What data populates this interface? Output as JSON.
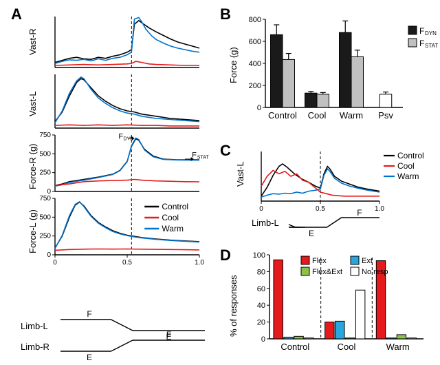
{
  "colors": {
    "control": "#000000",
    "cool": "#e41a1c",
    "warm": "#0072ce",
    "axis": "#000000",
    "fdyn_fill": "#1a1a1a",
    "fstat_fill": "#c0c0c0",
    "psv_fill": "#ffffff",
    "flex": "#e41a1c",
    "ext": "#2aa6de",
    "flexext": "#8bc34a",
    "noresp": "#ffffff",
    "bg": "#ffffff"
  },
  "panelA": {
    "label": "A",
    "x_ticks": [
      0,
      0.5,
      1.0
    ],
    "vdash_x": 0.53,
    "plots": [
      {
        "ylab": "Vast-R",
        "ylim": [
          0,
          1
        ],
        "control": [
          [
            0,
            0.1
          ],
          [
            0.05,
            0.14
          ],
          [
            0.1,
            0.18
          ],
          [
            0.15,
            0.2
          ],
          [
            0.2,
            0.17
          ],
          [
            0.25,
            0.16
          ],
          [
            0.3,
            0.2
          ],
          [
            0.35,
            0.18
          ],
          [
            0.4,
            0.22
          ],
          [
            0.45,
            0.25
          ],
          [
            0.5,
            0.3
          ],
          [
            0.53,
            0.35
          ],
          [
            0.55,
            0.85
          ],
          [
            0.58,
            0.92
          ],
          [
            0.6,
            0.88
          ],
          [
            0.65,
            0.78
          ],
          [
            0.7,
            0.7
          ],
          [
            0.75,
            0.63
          ],
          [
            0.8,
            0.56
          ],
          [
            0.85,
            0.5
          ],
          [
            0.9,
            0.46
          ],
          [
            0.95,
            0.42
          ],
          [
            1.0,
            0.38
          ]
        ],
        "cool": [
          [
            0,
            0.04
          ],
          [
            0.1,
            0.05
          ],
          [
            0.2,
            0.06
          ],
          [
            0.3,
            0.05
          ],
          [
            0.4,
            0.06
          ],
          [
            0.5,
            0.07
          ],
          [
            0.53,
            0.08
          ],
          [
            0.56,
            0.12
          ],
          [
            0.6,
            0.1
          ],
          [
            0.65,
            0.07
          ],
          [
            0.7,
            0.06
          ],
          [
            0.8,
            0.05
          ],
          [
            0.9,
            0.04
          ],
          [
            1.0,
            0.04
          ]
        ],
        "warm": [
          [
            0,
            0.08
          ],
          [
            0.05,
            0.12
          ],
          [
            0.1,
            0.15
          ],
          [
            0.15,
            0.14
          ],
          [
            0.2,
            0.16
          ],
          [
            0.25,
            0.13
          ],
          [
            0.3,
            0.17
          ],
          [
            0.35,
            0.14
          ],
          [
            0.4,
            0.18
          ],
          [
            0.45,
            0.2
          ],
          [
            0.5,
            0.25
          ],
          [
            0.53,
            0.3
          ],
          [
            0.55,
            0.95
          ],
          [
            0.58,
            0.98
          ],
          [
            0.6,
            0.9
          ],
          [
            0.63,
            0.75
          ],
          [
            0.67,
            0.62
          ],
          [
            0.7,
            0.55
          ],
          [
            0.75,
            0.48
          ],
          [
            0.8,
            0.42
          ],
          [
            0.85,
            0.38
          ],
          [
            0.9,
            0.35
          ],
          [
            0.95,
            0.32
          ],
          [
            1.0,
            0.3
          ]
        ]
      },
      {
        "ylab": "Vast-L",
        "ylim": [
          0,
          1
        ],
        "control": [
          [
            0,
            0.12
          ],
          [
            0.05,
            0.3
          ],
          [
            0.1,
            0.6
          ],
          [
            0.15,
            0.85
          ],
          [
            0.18,
            0.92
          ],
          [
            0.2,
            0.9
          ],
          [
            0.25,
            0.75
          ],
          [
            0.3,
            0.6
          ],
          [
            0.35,
            0.5
          ],
          [
            0.4,
            0.42
          ],
          [
            0.45,
            0.36
          ],
          [
            0.5,
            0.32
          ],
          [
            0.55,
            0.3
          ],
          [
            0.6,
            0.26
          ],
          [
            0.7,
            0.22
          ],
          [
            0.8,
            0.18
          ],
          [
            0.9,
            0.16
          ],
          [
            1.0,
            0.14
          ]
        ],
        "cool": [
          [
            0,
            0.05
          ],
          [
            0.1,
            0.06
          ],
          [
            0.2,
            0.05
          ],
          [
            0.3,
            0.06
          ],
          [
            0.4,
            0.05
          ],
          [
            0.5,
            0.06
          ],
          [
            0.6,
            0.05
          ],
          [
            0.7,
            0.05
          ],
          [
            0.8,
            0.04
          ],
          [
            0.9,
            0.04
          ],
          [
            1.0,
            0.04
          ]
        ],
        "warm": [
          [
            0,
            0.1
          ],
          [
            0.05,
            0.32
          ],
          [
            0.1,
            0.65
          ],
          [
            0.15,
            0.88
          ],
          [
            0.18,
            0.95
          ],
          [
            0.2,
            0.92
          ],
          [
            0.25,
            0.72
          ],
          [
            0.3,
            0.56
          ],
          [
            0.35,
            0.46
          ],
          [
            0.4,
            0.38
          ],
          [
            0.45,
            0.32
          ],
          [
            0.5,
            0.28
          ],
          [
            0.55,
            0.26
          ],
          [
            0.6,
            0.22
          ],
          [
            0.7,
            0.18
          ],
          [
            0.8,
            0.16
          ],
          [
            0.9,
            0.14
          ],
          [
            1.0,
            0.12
          ]
        ]
      },
      {
        "ylab": "Force-R (g)",
        "ylim": [
          0,
          750
        ],
        "yticks": [
          0,
          250,
          500,
          750
        ],
        "fdyn_label": "F",
        "fdyn_sub": "DYN",
        "fstat_label": "F",
        "fstat_sub": "STAT",
        "control": [
          [
            0,
            80
          ],
          [
            0.05,
            100
          ],
          [
            0.1,
            130
          ],
          [
            0.2,
            160
          ],
          [
            0.3,
            190
          ],
          [
            0.4,
            230
          ],
          [
            0.45,
            280
          ],
          [
            0.5,
            400
          ],
          [
            0.53,
            600
          ],
          [
            0.56,
            700
          ],
          [
            0.58,
            680
          ],
          [
            0.62,
            560
          ],
          [
            0.68,
            470
          ],
          [
            0.75,
            430
          ],
          [
            0.85,
            420
          ],
          [
            1.0,
            420
          ]
        ],
        "cool": [
          [
            0,
            80
          ],
          [
            0.1,
            100
          ],
          [
            0.2,
            130
          ],
          [
            0.3,
            140
          ],
          [
            0.4,
            145
          ],
          [
            0.5,
            150
          ],
          [
            0.55,
            160
          ],
          [
            0.6,
            150
          ],
          [
            0.7,
            140
          ],
          [
            0.8,
            135
          ],
          [
            0.9,
            130
          ],
          [
            1.0,
            128
          ]
        ],
        "warm": [
          [
            0,
            70
          ],
          [
            0.05,
            90
          ],
          [
            0.1,
            120
          ],
          [
            0.2,
            150
          ],
          [
            0.3,
            185
          ],
          [
            0.4,
            225
          ],
          [
            0.45,
            275
          ],
          [
            0.5,
            395
          ],
          [
            0.53,
            610
          ],
          [
            0.56,
            710
          ],
          [
            0.58,
            690
          ],
          [
            0.62,
            550
          ],
          [
            0.68,
            460
          ],
          [
            0.75,
            425
          ],
          [
            0.85,
            418
          ],
          [
            1.0,
            415
          ]
        ]
      },
      {
        "ylab": "Force-L (g)",
        "ylim": [
          0,
          750
        ],
        "yticks": [
          0,
          250,
          500,
          750
        ],
        "control": [
          [
            0,
            90
          ],
          [
            0.05,
            250
          ],
          [
            0.1,
            500
          ],
          [
            0.14,
            660
          ],
          [
            0.17,
            700
          ],
          [
            0.2,
            650
          ],
          [
            0.25,
            520
          ],
          [
            0.3,
            430
          ],
          [
            0.35,
            370
          ],
          [
            0.4,
            320
          ],
          [
            0.45,
            285
          ],
          [
            0.5,
            260
          ],
          [
            0.55,
            245
          ],
          [
            0.6,
            230
          ],
          [
            0.7,
            210
          ],
          [
            0.8,
            195
          ],
          [
            0.9,
            185
          ],
          [
            1.0,
            175
          ]
        ],
        "cool": [
          [
            0,
            60
          ],
          [
            0.1,
            70
          ],
          [
            0.2,
            75
          ],
          [
            0.3,
            78
          ],
          [
            0.4,
            76
          ],
          [
            0.5,
            78
          ],
          [
            0.6,
            75
          ],
          [
            0.7,
            72
          ],
          [
            0.8,
            70
          ],
          [
            0.9,
            68
          ],
          [
            1.0,
            65
          ]
        ],
        "warm": [
          [
            0,
            85
          ],
          [
            0.05,
            260
          ],
          [
            0.1,
            520
          ],
          [
            0.14,
            670
          ],
          [
            0.17,
            705
          ],
          [
            0.2,
            640
          ],
          [
            0.25,
            510
          ],
          [
            0.3,
            420
          ],
          [
            0.35,
            360
          ],
          [
            0.4,
            310
          ],
          [
            0.45,
            278
          ],
          [
            0.5,
            255
          ],
          [
            0.55,
            238
          ],
          [
            0.6,
            225
          ],
          [
            0.7,
            205
          ],
          [
            0.8,
            190
          ],
          [
            0.9,
            180
          ],
          [
            1.0,
            170
          ]
        ]
      }
    ],
    "legend": {
      "labels": [
        "Control",
        "Cool",
        "Warm"
      ]
    },
    "limb": {
      "L": {
        "label": "Limb-L",
        "phases": [
          "F",
          "E"
        ]
      },
      "R": {
        "label": "Limb-R",
        "phases": [
          "E",
          "F"
        ]
      }
    }
  },
  "panelB": {
    "label": "B",
    "title": "",
    "ylab": "Force (g)",
    "ylim": [
      0,
      800
    ],
    "yticks": [
      0,
      200,
      400,
      600,
      800
    ],
    "categories": [
      "Control",
      "Cool",
      "Warm",
      "Psv"
    ],
    "series": [
      {
        "key": "FDYN",
        "label_main": "F",
        "label_sub": "DYN",
        "fill": "#1a1a1a",
        "values": [
          660,
          130,
          680,
          null
        ],
        "err": [
          90,
          15,
          105,
          null
        ]
      },
      {
        "key": "FSTAT",
        "label_main": "F",
        "label_sub": "STAT",
        "fill": "#c0c0c0",
        "values": [
          435,
          120,
          460,
          null
        ],
        "err": [
          55,
          15,
          60,
          null
        ]
      },
      {
        "key": "PSV",
        "fill": "#ffffff",
        "values": [
          null,
          null,
          null,
          120
        ],
        "err": [
          null,
          null,
          null,
          20
        ]
      }
    ],
    "bar_width": 0.35
  },
  "panelC": {
    "label": "C",
    "ylab": "Vast-L",
    "x_ticks": [
      0,
      0.5,
      1.0
    ],
    "vdash_x": 0.5,
    "ylim": [
      0,
      1
    ],
    "control": [
      [
        0,
        0.1
      ],
      [
        0.05,
        0.28
      ],
      [
        0.1,
        0.52
      ],
      [
        0.15,
        0.7
      ],
      [
        0.18,
        0.75
      ],
      [
        0.22,
        0.68
      ],
      [
        0.28,
        0.55
      ],
      [
        0.34,
        0.45
      ],
      [
        0.4,
        0.38
      ],
      [
        0.46,
        0.3
      ],
      [
        0.5,
        0.26
      ],
      [
        0.53,
        0.55
      ],
      [
        0.56,
        0.7
      ],
      [
        0.58,
        0.65
      ],
      [
        0.62,
        0.5
      ],
      [
        0.68,
        0.4
      ],
      [
        0.75,
        0.34
      ],
      [
        0.82,
        0.28
      ],
      [
        0.9,
        0.24
      ],
      [
        1.0,
        0.2
      ]
    ],
    "cool": [
      [
        0,
        0.3
      ],
      [
        0.05,
        0.5
      ],
      [
        0.1,
        0.62
      ],
      [
        0.15,
        0.55
      ],
      [
        0.2,
        0.6
      ],
      [
        0.25,
        0.5
      ],
      [
        0.3,
        0.55
      ],
      [
        0.35,
        0.42
      ],
      [
        0.4,
        0.38
      ],
      [
        0.45,
        0.28
      ],
      [
        0.5,
        0.18
      ],
      [
        0.55,
        0.15
      ],
      [
        0.6,
        0.12
      ],
      [
        0.7,
        0.1
      ],
      [
        0.8,
        0.1
      ],
      [
        0.9,
        0.1
      ],
      [
        1.0,
        0.1
      ]
    ],
    "warm": [
      [
        0,
        0.08
      ],
      [
        0.05,
        0.12
      ],
      [
        0.1,
        0.15
      ],
      [
        0.15,
        0.14
      ],
      [
        0.2,
        0.16
      ],
      [
        0.25,
        0.15
      ],
      [
        0.3,
        0.18
      ],
      [
        0.35,
        0.16
      ],
      [
        0.4,
        0.2
      ],
      [
        0.46,
        0.22
      ],
      [
        0.5,
        0.24
      ],
      [
        0.53,
        0.52
      ],
      [
        0.56,
        0.65
      ],
      [
        0.58,
        0.6
      ],
      [
        0.62,
        0.46
      ],
      [
        0.68,
        0.36
      ],
      [
        0.75,
        0.3
      ],
      [
        0.82,
        0.26
      ],
      [
        0.9,
        0.22
      ],
      [
        1.0,
        0.18
      ]
    ],
    "limb": {
      "label": "Limb-L",
      "phases": [
        "E",
        "F"
      ]
    }
  },
  "panelD": {
    "label": "D",
    "ylab": "% of responses",
    "ylim": [
      0,
      100
    ],
    "yticks": [
      0,
      20,
      40,
      60,
      80,
      100
    ],
    "categories": [
      "Control",
      "Cool",
      "Warm"
    ],
    "series": [
      {
        "key": "Flex",
        "label": "Flex",
        "fill": "#e41a1c",
        "values": [
          94,
          20,
          93
        ]
      },
      {
        "key": "Ext",
        "label": "Ext",
        "fill": "#2aa6de",
        "values": [
          2,
          21,
          1
        ]
      },
      {
        "key": "FlexExt",
        "label": "Flex&Ext",
        "fill": "#8bc34a",
        "values": [
          3,
          1,
          5
        ]
      },
      {
        "key": "NoResp",
        "label": "No resp",
        "fill": "#ffffff",
        "values": [
          1,
          58,
          1
        ]
      }
    ],
    "bar_width": 0.2
  }
}
